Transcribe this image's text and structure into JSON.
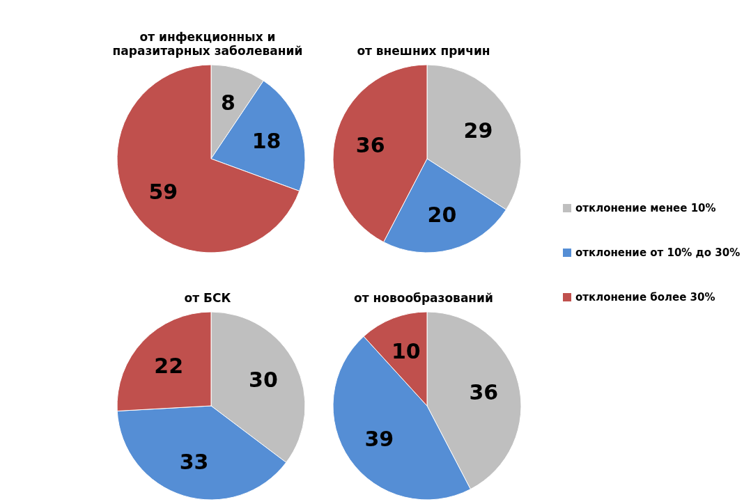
{
  "chart_data": [
    {
      "type": "pie",
      "title": "от инфекционных и паразитарных заболеваний",
      "categories": [
        "отклонение менее 10%",
        "отклонение от 10% до 30%",
        "отклонение более 30%"
      ],
      "values": [
        8,
        18,
        59
      ],
      "colors": [
        "#bfbfbf",
        "#558ed5",
        "#c0504d"
      ],
      "data_labels": true,
      "legend": "right"
    },
    {
      "type": "pie",
      "title": "от внешних причин",
      "categories": [
        null,
        null,
        null
      ],
      "values": [
        29,
        20,
        36
      ],
      "colors": [
        "#bfbfbf",
        "#558ed5",
        "#c0504d"
      ],
      "data_labels": true
    },
    {
      "type": "pie",
      "title": "от БСК",
      "categories": [
        null,
        null,
        null
      ],
      "values": [
        30,
        33,
        22
      ],
      "colors": [
        "#bfbfbf",
        "#558ed5",
        "#c0504d"
      ],
      "data_labels": true
    },
    {
      "type": "pie",
      "title": "от новообразований",
      "categories": [
        null,
        null,
        null
      ],
      "values": [
        36,
        39,
        10
      ],
      "colors": [
        "#bfbfbf",
        "#558ed5",
        "#c0504d"
      ],
      "data_labels": true
    }
  ]
}
